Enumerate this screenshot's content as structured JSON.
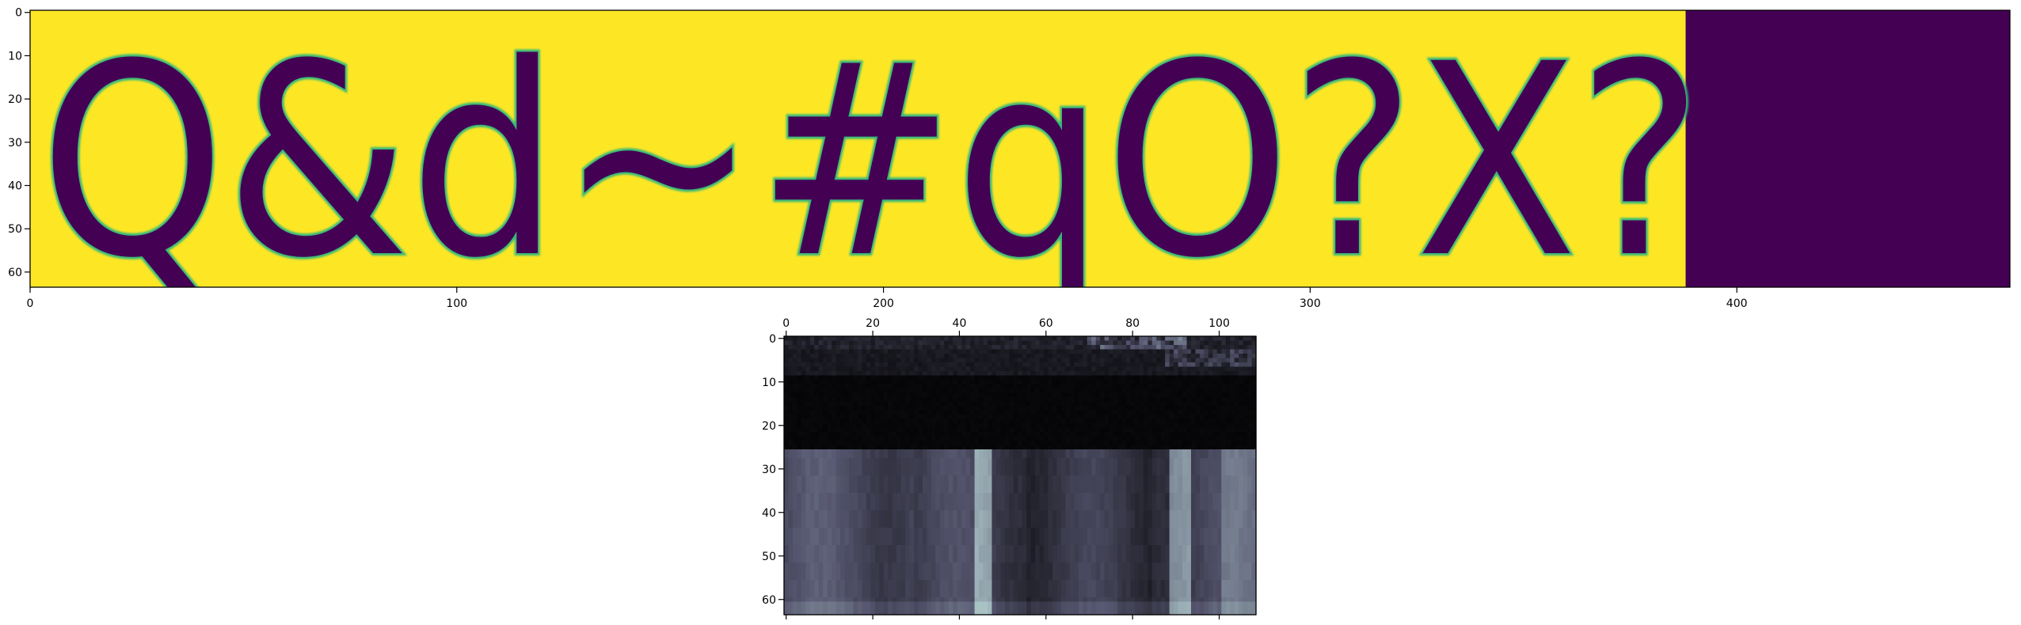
{
  "chart_data": [
    {
      "type": "heatmap",
      "image_text": "Q&d~#qO?X?",
      "image_size": [
        464,
        64
      ],
      "text_extent": [
        0,
        388
      ],
      "colormap": "viridis",
      "foreground_color": "#440154",
      "background_color": "#fde725",
      "xlim": [
        0,
        464
      ],
      "ylim": [
        64,
        0
      ],
      "x_ticks": [
        "0",
        "100",
        "200",
        "300",
        "400"
      ],
      "y_ticks": [
        "0",
        "10",
        "20",
        "30",
        "40",
        "50",
        "60"
      ],
      "grid": false
    },
    {
      "type": "heatmap",
      "colormap": "bone",
      "shape": [
        64,
        109
      ],
      "xlim": [
        0,
        109
      ],
      "ylim": [
        64,
        0
      ],
      "x_ticks": [
        "0",
        "20",
        "40",
        "60",
        "80",
        "100"
      ],
      "y_ticks": [
        "0",
        "10",
        "20",
        "30",
        "40",
        "50",
        "60"
      ],
      "x_axis_position": "top",
      "dark_band_rows": [
        9,
        25
      ],
      "bright_columns": [
        44,
        45,
        46,
        47,
        89,
        90,
        91,
        92,
        93
      ],
      "grid": false
    }
  ]
}
